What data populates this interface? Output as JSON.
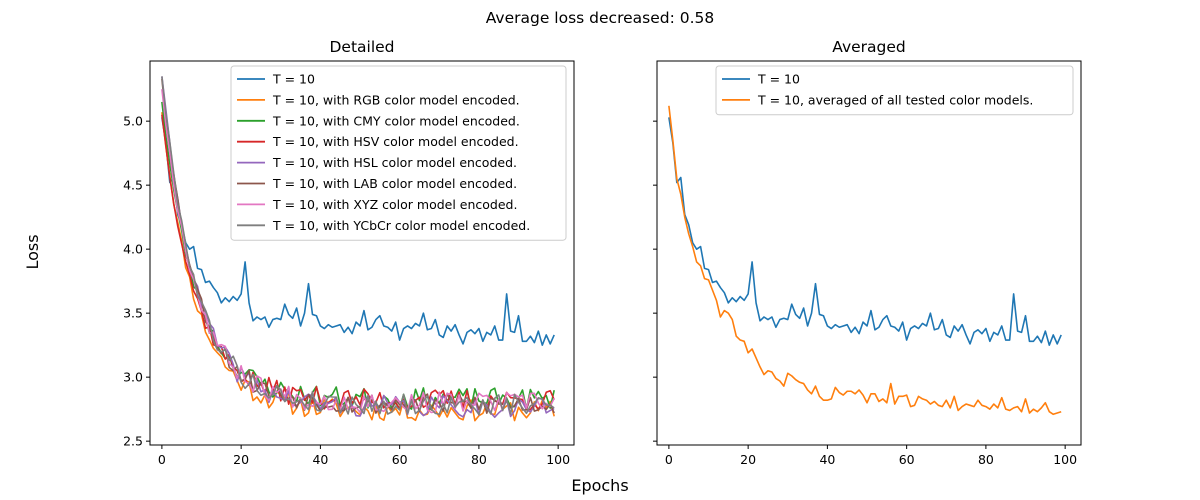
{
  "suptitle": "Average loss decreased: 0.58",
  "xlabel": "Epochs",
  "ylabel": "Loss",
  "chart_data": [
    {
      "type": "line",
      "title": "Detailed",
      "xlim": [
        -3,
        104
      ],
      "ylim": [
        2.47,
        5.47
      ],
      "xticks": [
        0,
        20,
        40,
        60,
        80,
        100
      ],
      "yticks": [
        2.5,
        3.0,
        3.5,
        4.0,
        4.5,
        5.0
      ],
      "ytick_labels": [
        "2.5",
        "3.0",
        "3.5",
        "4.0",
        "4.5",
        "5.0"
      ],
      "legend_position": "top-right",
      "series": [
        {
          "name": "T = 10",
          "color": "#1f77b4",
          "kind": "baseline"
        },
        {
          "name": "T = 10, with RGB color model encoded.",
          "color": "#ff7f0e",
          "kind": "variant",
          "start": 5.07,
          "floor": 2.74,
          "seed": 11
        },
        {
          "name": "T = 10, with CMY color model encoded.",
          "color": "#2ca02c",
          "kind": "variant",
          "start": 5.15,
          "floor": 2.83,
          "seed": 23
        },
        {
          "name": "T = 10, with HSV color model encoded.",
          "color": "#d62728",
          "kind": "variant",
          "start": 5.05,
          "floor": 2.82,
          "seed": 37
        },
        {
          "name": "T = 10, with HSL color model encoded.",
          "color": "#9467bd",
          "kind": "variant",
          "start": 5.35,
          "floor": 2.77,
          "seed": 41
        },
        {
          "name": "T = 10, with LAB color model encoded.",
          "color": "#8c564b",
          "kind": "variant",
          "start": 5.33,
          "floor": 2.79,
          "seed": 53
        },
        {
          "name": "T = 10, with XYZ color model encoded.",
          "color": "#e377c2",
          "kind": "variant",
          "start": 5.25,
          "floor": 2.8,
          "seed": 67
        },
        {
          "name": "T = 10, with YCbCr color model encoded.",
          "color": "#7f7f7f",
          "kind": "variant",
          "start": 5.35,
          "floor": 2.78,
          "seed": 79
        }
      ]
    },
    {
      "type": "line",
      "title": "Averaged",
      "xlim": [
        -3,
        104
      ],
      "ylim": [
        2.47,
        5.47
      ],
      "xticks": [
        0,
        20,
        40,
        60,
        80,
        100
      ],
      "yticks": [
        2.5,
        3.0,
        3.5,
        4.0,
        4.5,
        5.0
      ],
      "legend_position": "top-right",
      "series": [
        {
          "name": "T = 10",
          "color": "#1f77b4",
          "kind": "baseline"
        },
        {
          "name": "T = 10, averaged of all tested color models.",
          "color": "#ff7f0e",
          "kind": "average"
        }
      ]
    }
  ],
  "baseline_values": [
    5.03,
    4.83,
    4.52,
    4.56,
    4.27,
    4.19,
    4.05,
    4.0,
    4.02,
    3.85,
    3.84,
    3.74,
    3.75,
    3.7,
    3.66,
    3.58,
    3.62,
    3.59,
    3.63,
    3.6,
    3.65,
    3.9,
    3.58,
    3.44,
    3.47,
    3.45,
    3.47,
    3.39,
    3.45,
    3.46,
    3.45,
    3.57,
    3.49,
    3.46,
    3.54,
    3.4,
    3.5,
    3.73,
    3.49,
    3.48,
    3.4,
    3.38,
    3.41,
    3.39,
    3.4,
    3.41,
    3.35,
    3.39,
    3.34,
    3.43,
    3.4,
    3.52,
    3.37,
    3.39,
    3.45,
    3.48,
    3.4,
    3.39,
    3.36,
    3.43,
    3.29,
    3.38,
    3.4,
    3.38,
    3.42,
    3.4,
    3.5,
    3.37,
    3.38,
    3.45,
    3.33,
    3.31,
    3.4,
    3.36,
    3.41,
    3.33,
    3.26,
    3.35,
    3.37,
    3.34,
    3.38,
    3.28,
    3.35,
    3.33,
    3.4,
    3.29,
    3.29,
    3.65,
    3.36,
    3.35,
    3.48,
    3.28,
    3.28,
    3.32,
    3.27,
    3.36,
    3.25,
    3.33,
    3.26,
    3.33
  ],
  "average_values": [
    5.12,
    4.85,
    4.55,
    4.43,
    4.25,
    4.12,
    4.02,
    3.9,
    3.87,
    3.77,
    3.76,
    3.68,
    3.6,
    3.47,
    3.52,
    3.5,
    3.45,
    3.32,
    3.29,
    3.28,
    3.19,
    3.22,
    3.15,
    3.08,
    3.02,
    3.05,
    3.04,
    2.99,
    2.97,
    2.93,
    3.03,
    3.01,
    2.98,
    2.96,
    2.95,
    2.9,
    2.87,
    2.93,
    2.85,
    2.82,
    2.82,
    2.83,
    2.92,
    2.88,
    2.86,
    2.89,
    2.89,
    2.87,
    2.9,
    2.86,
    2.8,
    2.87,
    2.87,
    2.81,
    2.83,
    2.8,
    2.95,
    2.79,
    2.85,
    2.85,
    2.86,
    2.77,
    2.78,
    2.85,
    2.83,
    2.82,
    2.79,
    2.81,
    2.78,
    2.77,
    2.82,
    2.76,
    2.85,
    2.74,
    2.77,
    2.79,
    2.78,
    2.77,
    2.82,
    2.78,
    2.77,
    2.75,
    2.79,
    2.76,
    2.84,
    2.75,
    2.74,
    2.76,
    2.77,
    2.73,
    2.83,
    2.72,
    2.75,
    2.73,
    2.76,
    2.8,
    2.73,
    2.71,
    2.72,
    2.73
  ]
}
